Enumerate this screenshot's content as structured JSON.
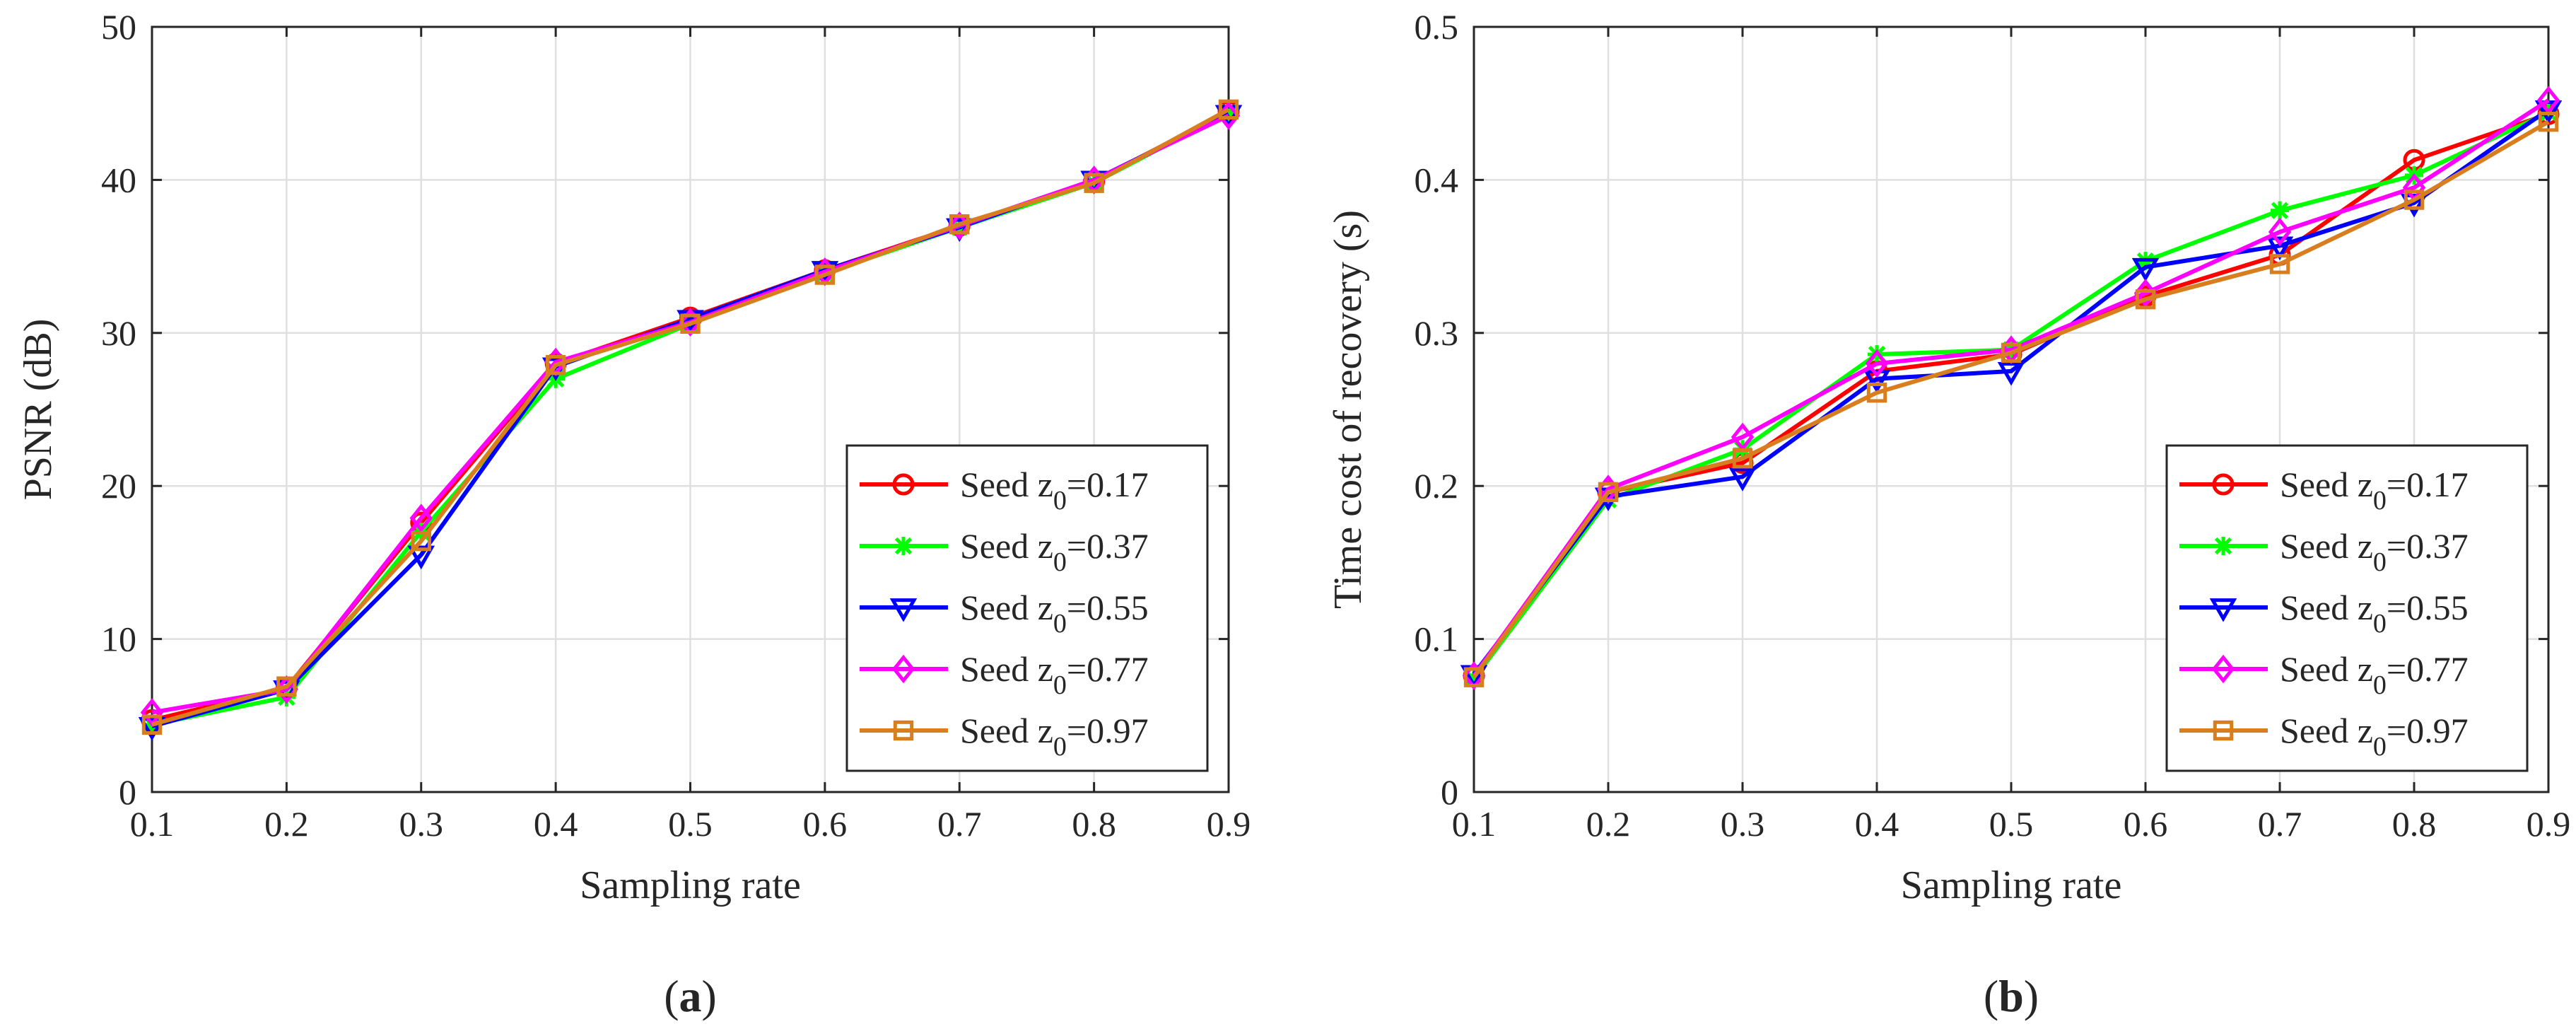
{
  "figure": {
    "panels": [
      {
        "label_open": "(",
        "label_letter": "a",
        "label_close": ")"
      },
      {
        "label_open": "(",
        "label_letter": "b",
        "label_close": ")"
      }
    ]
  },
  "series_style": [
    {
      "name": "Seed z0=0.17",
      "legend_prefix": "Seed z",
      "legend_sub": "0",
      "legend_suffix": "=0.17",
      "color": "#ff0000",
      "marker": "circle"
    },
    {
      "name": "Seed z0=0.37",
      "legend_prefix": "Seed z",
      "legend_sub": "0",
      "legend_suffix": "=0.37",
      "color": "#00ff00",
      "marker": "asterisk"
    },
    {
      "name": "Seed z0=0.55",
      "legend_prefix": "Seed z",
      "legend_sub": "0",
      "legend_suffix": "=0.55",
      "color": "#0000ff",
      "marker": "triangle-down"
    },
    {
      "name": "Seed z0=0.77",
      "legend_prefix": "Seed z",
      "legend_sub": "0",
      "legend_suffix": "=0.77",
      "color": "#ff00ff",
      "marker": "diamond"
    },
    {
      "name": "Seed z0=0.97",
      "legend_prefix": "Seed z",
      "legend_sub": "0",
      "legend_suffix": "=0.97",
      "color": "#d97e1f",
      "marker": "square"
    }
  ],
  "chart_data": [
    {
      "type": "line",
      "title": "",
      "xlabel": "Sampling rate",
      "ylabel": "PSNR (dB)",
      "x": [
        0.1,
        0.2,
        0.3,
        0.4,
        0.5,
        0.6,
        0.7,
        0.8,
        0.9
      ],
      "xlim": [
        0.1,
        0.9
      ],
      "ylim": [
        0,
        50
      ],
      "xticks": [
        "0.1",
        "0.2",
        "0.3",
        "0.4",
        "0.5",
        "0.6",
        "0.7",
        "0.8",
        "0.9"
      ],
      "yticks": [
        "0",
        "10",
        "20",
        "30",
        "40",
        "50"
      ],
      "ytick_values": [
        0,
        10,
        20,
        30,
        40,
        50
      ],
      "grid": true,
      "legend_position": "bottom-right",
      "series": [
        {
          "name": "Seed z0=0.17",
          "values": [
            4.7,
            6.8,
            17.6,
            28.0,
            31.0,
            34.1,
            37.0,
            39.9,
            44.5
          ]
        },
        {
          "name": "Seed z0=0.37",
          "values": [
            4.4,
            6.2,
            17.0,
            27.0,
            30.6,
            33.9,
            36.9,
            39.8,
            44.4
          ]
        },
        {
          "name": "Seed z0=0.55",
          "values": [
            4.3,
            6.7,
            15.5,
            27.8,
            30.9,
            34.1,
            36.9,
            40.0,
            44.3
          ]
        },
        {
          "name": "Seed z0=0.77",
          "values": [
            5.2,
            6.7,
            17.9,
            28.1,
            30.7,
            34.0,
            37.0,
            40.0,
            44.2
          ]
        },
        {
          "name": "Seed z0=0.97",
          "values": [
            4.4,
            6.9,
            16.4,
            27.9,
            30.6,
            33.8,
            37.1,
            39.8,
            44.6
          ]
        }
      ]
    },
    {
      "type": "line",
      "title": "",
      "xlabel": "Sampling rate",
      "ylabel": "Time cost of recovery (s)",
      "x": [
        0.1,
        0.2,
        0.3,
        0.4,
        0.5,
        0.6,
        0.7,
        0.8,
        0.9
      ],
      "xlim": [
        0.1,
        0.9
      ],
      "ylim": [
        0,
        0.5
      ],
      "xticks": [
        "0.1",
        "0.2",
        "0.3",
        "0.4",
        "0.5",
        "0.6",
        "0.7",
        "0.8",
        "0.9"
      ],
      "yticks": [
        "0",
        "0.1",
        "0.2",
        "0.3",
        "0.4",
        "0.5"
      ],
      "ytick_values": [
        0,
        0.1,
        0.2,
        0.3,
        0.4,
        0.5
      ],
      "grid": true,
      "legend_position": "bottom-right",
      "series": [
        {
          "name": "Seed z0=0.17",
          "values": [
            0.076,
            0.196,
            0.215,
            0.275,
            0.286,
            0.324,
            0.351,
            0.413,
            0.443
          ]
        },
        {
          "name": "Seed z0=0.37",
          "values": [
            0.074,
            0.191,
            0.224,
            0.286,
            0.289,
            0.347,
            0.38,
            0.403,
            0.444
          ]
        },
        {
          "name": "Seed z0=0.55",
          "values": [
            0.077,
            0.193,
            0.206,
            0.27,
            0.275,
            0.343,
            0.357,
            0.385,
            0.446
          ]
        },
        {
          "name": "Seed z0=0.77",
          "values": [
            0.076,
            0.198,
            0.232,
            0.28,
            0.289,
            0.326,
            0.366,
            0.395,
            0.452
          ]
        },
        {
          "name": "Seed z0=0.97",
          "values": [
            0.075,
            0.196,
            0.218,
            0.261,
            0.287,
            0.322,
            0.345,
            0.387,
            0.438
          ]
        }
      ]
    }
  ]
}
